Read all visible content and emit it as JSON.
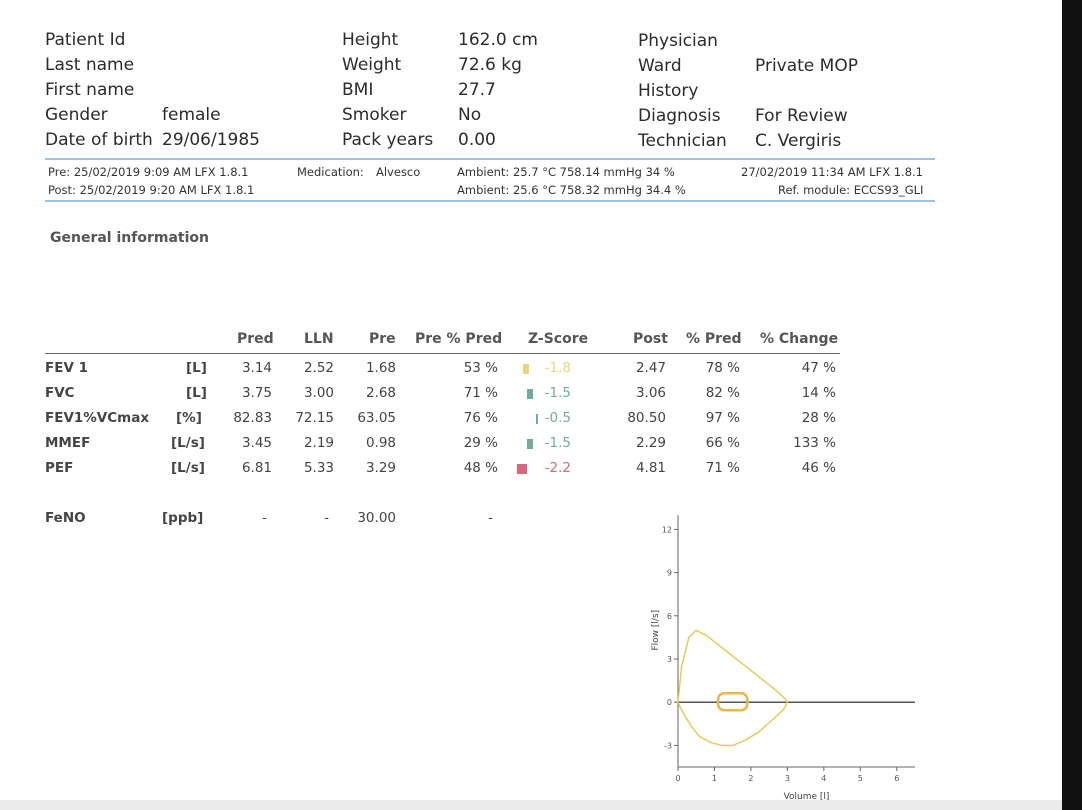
{
  "patient": {
    "patient_id_label": "Patient Id",
    "patient_id": "",
    "last_name_label": "Last name",
    "last_name": "",
    "first_name_label": "First name",
    "first_name": "",
    "gender_label": "Gender",
    "gender": "female",
    "dob_label": "Date of birth",
    "dob": "29/06/1985",
    "height_label": "Height",
    "height": "162.0 cm",
    "weight_label": "Weight",
    "weight": "72.6 kg",
    "bmi_label": "BMI",
    "bmi": "27.7",
    "smoker_label": "Smoker",
    "smoker": "No",
    "pack_years_label": "Pack years",
    "pack_years": "0.00",
    "physician_label": "Physician",
    "physician": "",
    "ward_label": "Ward",
    "ward": "Private MOP",
    "history_label": "History",
    "history": "",
    "diagnosis_label": "Diagnosis",
    "diagnosis": "For Review",
    "technician_label": "Technician",
    "technician": "C. Vergiris"
  },
  "test_meta": {
    "pre": "Pre:  25/02/2019 9:09 AM LFX 1.8.1",
    "post": "Post:  25/02/2019 9:20 AM LFX 1.8.1",
    "medication_label": "Medication:",
    "medication": "Alvesco",
    "ambient_pre": "Ambient:  25.7 °C  758.14 mmHg  34 %",
    "ambient_post": "Ambient:  25.6 °C  758.32 mmHg  34.4 %",
    "report_date": "27/02/2019 11:34 AM  LFX 1.8.1",
    "ref_module": "Ref. module:  ECCS93_GLI"
  },
  "section_title": "General information",
  "table": {
    "headers": [
      "Pred",
      "LLN",
      "Pre",
      "Pre % Pred",
      "Z-Score",
      "Post",
      "% Pred",
      "% Change"
    ],
    "rows": [
      {
        "name": "FEV 1",
        "unit": "[L]",
        "pred": "3.14",
        "lln": "2.52",
        "pre": "1.68",
        "pre_pct": "53 %",
        "z": "-1.8",
        "z_color": "#e8d77a",
        "post": "2.47",
        "post_pct": "78 %",
        "change": "47 %"
      },
      {
        "name": "FVC",
        "unit": "[L]",
        "pred": "3.75",
        "lln": "3.00",
        "pre": "2.68",
        "pre_pct": "71 %",
        "z": "-1.5",
        "z_color": "#6fae9a",
        "post": "3.06",
        "post_pct": "82 %",
        "change": "14 %"
      },
      {
        "name": "FEV1%VCmax",
        "unit": "[%]",
        "pred": "82.83",
        "lln": "72.15",
        "pre": "63.05",
        "pre_pct": "76 %",
        "z": "-0.5",
        "z_color": "#6fae9a",
        "post": "80.50",
        "post_pct": "97 %",
        "change": "28 %"
      },
      {
        "name": "MMEF",
        "unit": "[L/s]",
        "pred": "3.45",
        "lln": "2.19",
        "pre": "0.98",
        "pre_pct": "29 %",
        "z": "-1.5",
        "z_color": "#6fae9a",
        "post": "2.29",
        "post_pct": "66 %",
        "change": "133 %"
      },
      {
        "name": "PEF",
        "unit": "[L/s]",
        "pred": "6.81",
        "lln": "5.33",
        "pre": "3.29",
        "pre_pct": "48 %",
        "z": "-2.2",
        "z_color": "#d9667a",
        "post": "4.81",
        "post_pct": "71 %",
        "change": "46 %"
      }
    ],
    "feno": {
      "name": "FeNO",
      "unit": "[ppb]",
      "pred": "-",
      "lln": "-",
      "pre": "30.00",
      "pre_pct": "-"
    }
  },
  "chart_data": {
    "type": "line",
    "xlabel": "Volume [l]",
    "ylabel": "Flow [l/s]",
    "xlim": [
      0,
      6.5
    ],
    "ylim": [
      -4.5,
      13
    ],
    "xticks": [
      0,
      1,
      2,
      3,
      4,
      5,
      6
    ],
    "yticks": [
      -3,
      0,
      3,
      6,
      9,
      12
    ],
    "series": [
      {
        "color": "#e8c84a",
        "x": [
          0,
          0.1,
          0.3,
          0.5,
          0.8,
          1.1,
          1.5,
          1.9,
          2.3,
          2.7,
          2.95,
          3.0,
          2.9,
          2.6,
          2.2,
          1.8,
          1.5,
          1.2,
          0.9,
          0.6,
          0.4,
          0.2,
          0.05,
          0
        ],
        "y": [
          0,
          2.5,
          4.5,
          5.0,
          4.6,
          4.0,
          3.2,
          2.4,
          1.6,
          0.8,
          0.2,
          0,
          -0.5,
          -1.2,
          -2.1,
          -2.7,
          -3.0,
          -3.0,
          -2.8,
          -2.4,
          -1.8,
          -1.0,
          -0.3,
          0
        ]
      }
    ]
  }
}
